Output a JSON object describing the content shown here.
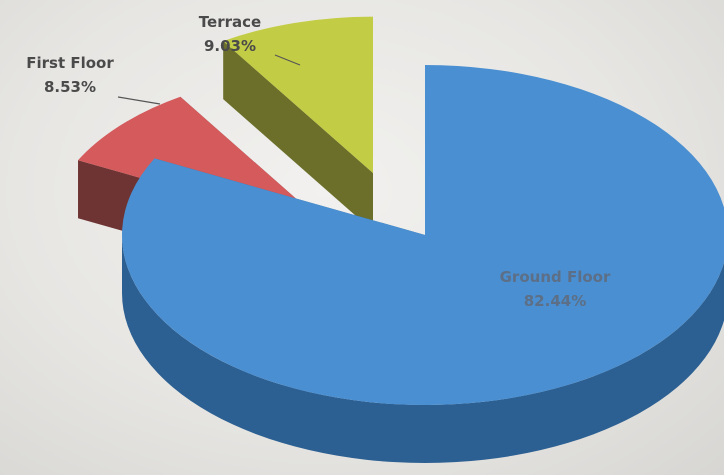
{
  "chart_data": {
    "type": "pie",
    "title": "",
    "slices": [
      {
        "label": "Ground Floor",
        "value": 82.44,
        "value_label": "82.44%",
        "color": "#4a8fd1",
        "side_color": "#2c5f92",
        "exploded": false
      },
      {
        "label": "First Floor",
        "value": 8.53,
        "value_label": "8.53%",
        "color": "#d45a5c",
        "side_color": "#6e3333",
        "exploded": true
      },
      {
        "label": "Terrace",
        "value": 9.03,
        "value_label": "9.03%",
        "color": "#c3cc45",
        "side_color": "#6b6f2a",
        "exploded": true
      }
    ],
    "legend": "none",
    "three_d": true
  }
}
